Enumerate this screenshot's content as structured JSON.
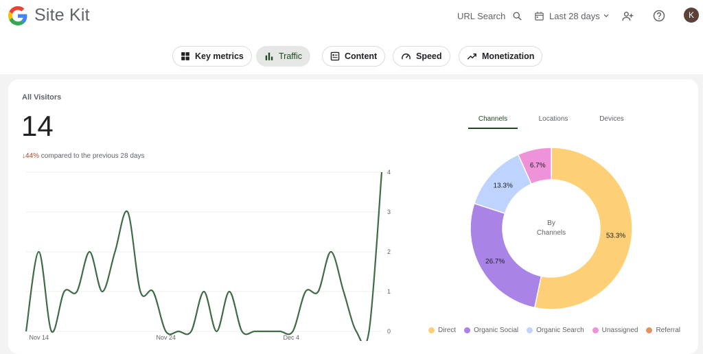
{
  "app": {
    "name": "Site Kit"
  },
  "header": {
    "url_search_label": "URL Search",
    "date_range_label": "Last 28 days",
    "avatar_initial": "K"
  },
  "nav_tabs": [
    {
      "label": "Key metrics",
      "icon": "grid-icon",
      "active": false
    },
    {
      "label": "Traffic",
      "icon": "bar-chart-icon",
      "active": true
    },
    {
      "label": "Content",
      "icon": "article-icon",
      "active": false
    },
    {
      "label": "Speed",
      "icon": "speedometer-icon",
      "active": false
    },
    {
      "label": "Monetization",
      "icon": "trending-up-icon",
      "active": false
    }
  ],
  "visitors": {
    "title": "All Visitors",
    "total": "14",
    "change_percent": "44%",
    "change_text": "compared to the previous 28 days"
  },
  "breakdown_tabs": [
    {
      "label": "Channels",
      "active": true
    },
    {
      "label": "Locations",
      "active": false
    },
    {
      "label": "Devices",
      "active": false
    }
  ],
  "donut_center": {
    "line1": "By",
    "line2": "Channels"
  },
  "colors": {
    "line": "#3f6b45",
    "accent": "#1e4620",
    "down": "#b4462a"
  },
  "chart_data": [
    {
      "type": "line",
      "x": [
        "Nov 13",
        "Nov 14",
        "Nov 15",
        "Nov 16",
        "Nov 17",
        "Nov 18",
        "Nov 19",
        "Nov 20",
        "Nov 21",
        "Nov 22",
        "Nov 23",
        "Nov 24",
        "Nov 25",
        "Nov 26",
        "Nov 27",
        "Nov 28",
        "Nov 29",
        "Nov 30",
        "Dec 1",
        "Dec 2",
        "Dec 3",
        "Dec 4",
        "Dec 5",
        "Dec 6",
        "Dec 7",
        "Dec 8",
        "Dec 9",
        "Dec 10",
        "Dec 11"
      ],
      "values": [
        0,
        2,
        0,
        1,
        1,
        2,
        1,
        2,
        3,
        1,
        1,
        0,
        0,
        0,
        1,
        0,
        1,
        0,
        0,
        0,
        0,
        0,
        1,
        1,
        2,
        1,
        0,
        0,
        4
      ],
      "x_ticks": [
        "Nov 14",
        "Nov 24",
        "Dec 4"
      ],
      "y_ticks": [
        0,
        1,
        2,
        3,
        4
      ],
      "ylim": [
        0,
        4
      ],
      "grid": true
    },
    {
      "type": "pie",
      "series": [
        {
          "name": "Direct",
          "value": 53.3,
          "label": "53.3%",
          "color": "#fdd077"
        },
        {
          "name": "Organic Social",
          "value": 26.7,
          "label": "26.7%",
          "color": "#a983e6"
        },
        {
          "name": "Organic Search",
          "value": 13.3,
          "label": "13.3%",
          "color": "#bed4ff"
        },
        {
          "name": "Unassigned",
          "value": 6.7,
          "label": "6.7%",
          "color": "#ee92da"
        },
        {
          "name": "Referral",
          "value": 0,
          "label": "",
          "color": "#e5915e"
        }
      ]
    }
  ]
}
